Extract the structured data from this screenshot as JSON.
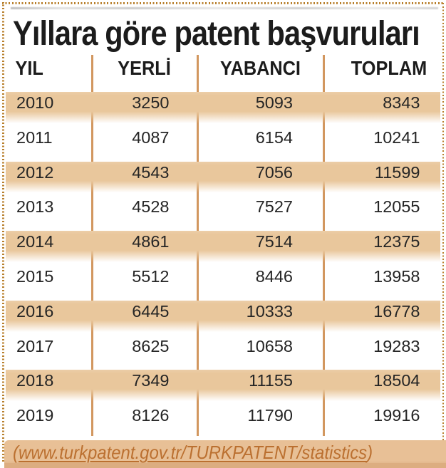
{
  "title": "Yıllara göre patent başvuruları",
  "source_link": {
    "prefix": "(",
    "text": "www.turkpatent.gov.tr/TURKPATENT/statistics",
    "suffix": ")"
  },
  "colors": {
    "band": "#e9c79c",
    "divider": "#d2975f",
    "footer_bar": "#e8c096",
    "link_text": "#bb7030",
    "border_dots": "#b9812f",
    "text": "#1c1c1c"
  },
  "chart_data": {
    "type": "table",
    "title": "Yıllara göre patent başvuruları",
    "columns": [
      "YIL",
      "YERLİ",
      "YABANCI",
      "TOPLAM"
    ],
    "rows": [
      [
        2010,
        3250,
        5093,
        8343
      ],
      [
        2011,
        4087,
        6154,
        10241
      ],
      [
        2012,
        4543,
        7056,
        11599
      ],
      [
        2013,
        4528,
        7527,
        12055
      ],
      [
        2014,
        4861,
        7514,
        12375
      ],
      [
        2015,
        5512,
        8446,
        13958
      ],
      [
        2016,
        6445,
        10333,
        16778
      ],
      [
        2017,
        8625,
        10658,
        19283
      ],
      [
        2018,
        7349,
        11155,
        18504
      ],
      [
        2019,
        8126,
        11790,
        19916
      ]
    ],
    "source": "(www.turkpatent.gov.tr/TURKPATENT/statistics)",
    "layout": {
      "banded_rows": "alternating tan bands starting with first data row",
      "band_fade": "bottom edge fades to white",
      "legend": "none",
      "grid": "vertical column dividers only"
    }
  }
}
